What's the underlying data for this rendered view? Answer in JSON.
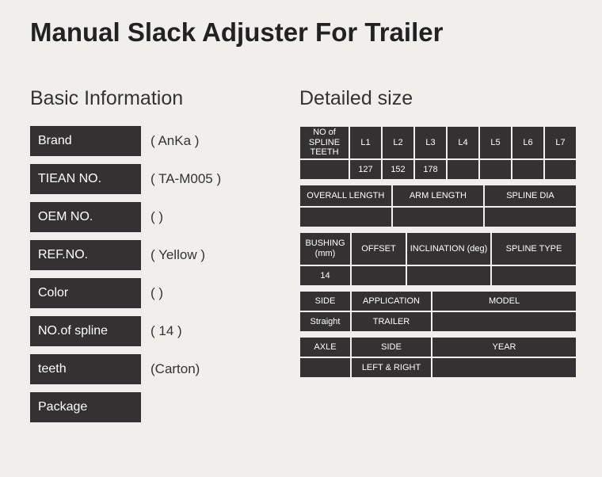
{
  "title": "Manual Slack Adjuster For Trailer",
  "basic": {
    "heading": "Basic Information",
    "rows": [
      {
        "label": "Brand",
        "value": "( AnKa )"
      },
      {
        "label": "TIEAN NO.",
        "value": "( TA-M005 )"
      },
      {
        "label": "OEM NO.",
        "value": "(               )"
      },
      {
        "label": "REF.NO.",
        "value": "( Yellow )"
      },
      {
        "label": "Color",
        "value": "(      )"
      },
      {
        "label": "NO.of spline",
        "value": "( 14 )"
      },
      {
        "label": "teeth",
        "value": "(Carton)"
      },
      {
        "label": "Package",
        "value": ""
      }
    ]
  },
  "detailed": {
    "heading": "Detailed size",
    "spline_header": "NO of SPLINE TEETH",
    "l_headers": [
      "L1",
      "L2",
      "L3",
      "L4",
      "L5",
      "L6",
      "L7"
    ],
    "l_values_first": "",
    "l_values": [
      "127",
      "152",
      "178",
      "",
      "",
      "",
      ""
    ],
    "triple_headers": [
      "OVERALL LENGTH",
      "ARM LENGTH",
      "SPLINE DIA"
    ],
    "triple_values": [
      "",
      "",
      ""
    ],
    "quad_headers": [
      "BUSHING (mm)",
      "OFFSET",
      "INCLINATION (deg)",
      "SPLINE TYPE"
    ],
    "quad_values": [
      "14",
      "",
      "",
      ""
    ],
    "sam_headers": [
      "SIDE",
      "APPLICATION",
      "MODEL"
    ],
    "sam_values": [
      "Straight",
      "TRAILER",
      ""
    ],
    "asy_headers": [
      "AXLE",
      "SIDE",
      "YEAR"
    ],
    "asy_values": [
      "",
      "LEFT & RIGHT",
      ""
    ]
  },
  "colors": {
    "page_bg": "#f0efec",
    "cell_bg": "#333131",
    "cell_text": "#ffffff",
    "body_text": "#333333"
  }
}
